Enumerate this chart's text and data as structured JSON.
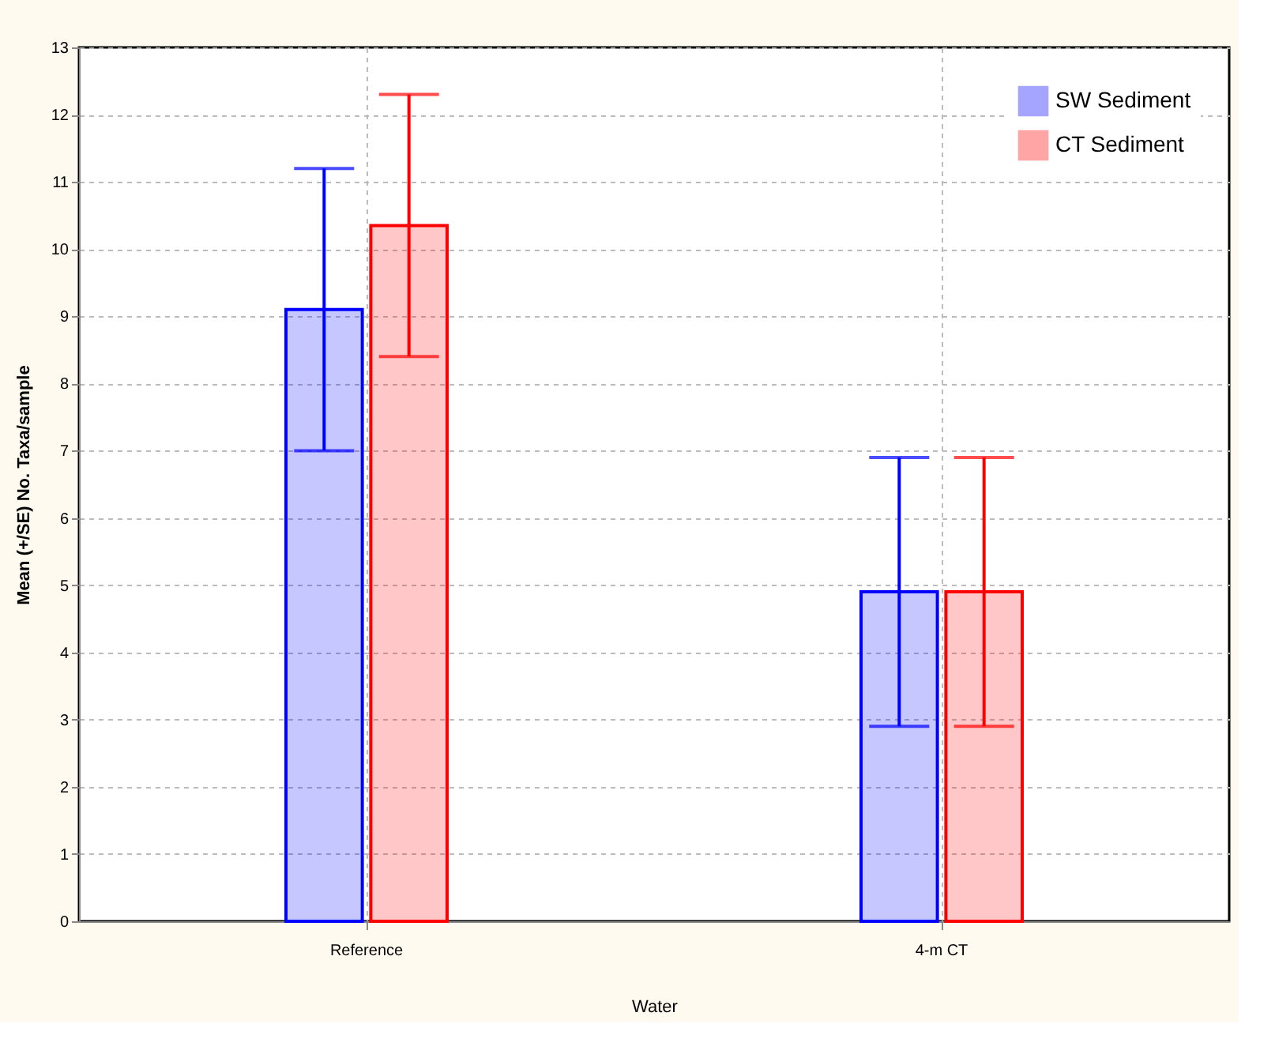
{
  "chart_data": {
    "type": "bar",
    "xlabel": "Water",
    "ylabel": "Mean (+/SE) No. Taxa/sample",
    "categories": [
      "Reference",
      "4-m CT"
    ],
    "series": [
      {
        "name": "SW Sediment",
        "color": "#0000ff",
        "values": [
          9.1,
          4.9
        ],
        "errors": [
          [
            7.0,
            11.2
          ],
          [
            2.9,
            6.9
          ]
        ]
      },
      {
        "name": "CT Sediment",
        "color": "#ff0000",
        "values": [
          10.35,
          4.9
        ],
        "errors": [
          [
            8.4,
            12.3
          ],
          [
            2.9,
            6.9
          ]
        ]
      }
    ],
    "ylim": [
      0,
      13
    ],
    "yticks": [
      0,
      1,
      2,
      3,
      4,
      5,
      6,
      7,
      8,
      9,
      10,
      11,
      12,
      13
    ],
    "grid": true,
    "legend": "top right"
  }
}
